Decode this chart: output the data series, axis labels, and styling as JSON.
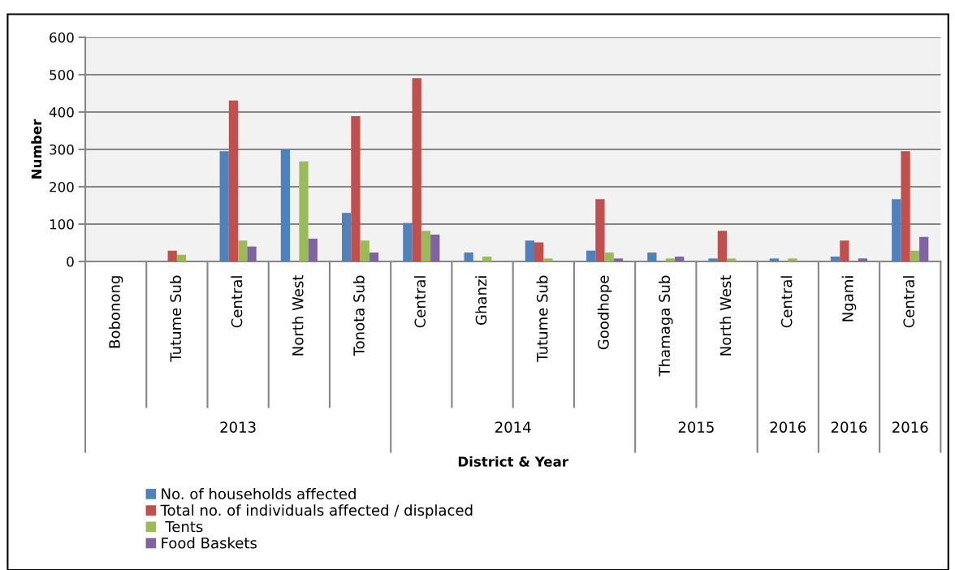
{
  "chart_data": {
    "type": "bar",
    "ylabel": "Number",
    "categories": [
      "Bobonong",
      "Tutume Sub",
      "Central",
      "North West",
      "Tonota Sub",
      "Central",
      "Ghanzi",
      "Tutume Sub",
      "Goodhope",
      "Thamaga Sub",
      "North West",
      "Central",
      "Ngami",
      "Central"
    ],
    "annotations": [
      "2013",
      "2014",
      "2015",
      "2016",
      "2016",
      "2016",
      "District & Year"
    ],
    "series": [
      {
        "name": "No. of households affected",
        "color": "#4f81bd",
        "values": [
          0,
          0,
          295,
          300,
          130,
          103,
          24,
          56,
          29,
          24,
          8,
          8,
          13,
          167
        ]
      },
      {
        "name": "Total no. of individuals affected / displaced",
        "color": "#c0504d",
        "values": [
          0,
          29,
          431,
          0,
          389,
          491,
          0,
          51,
          167,
          0,
          82,
          0,
          56,
          295
        ]
      },
      {
        "name": " Tents",
        "color": "#9bbb59",
        "values": [
          0,
          18,
          56,
          268,
          56,
          82,
          13,
          8,
          24,
          8,
          8,
          8,
          0,
          29
        ]
      },
      {
        "name": "Food Baskets",
        "color": "#8064a2",
        "values": [
          0,
          null,
          40,
          61,
          24,
          72,
          0,
          0,
          8,
          13,
          0,
          0,
          8,
          66
        ]
      }
    ],
    "ylim": [
      0,
      600
    ],
    "yticks": [
      0,
      100,
      200,
      300,
      400,
      500,
      600
    ],
    "grid": "y",
    "legend": "bottom"
  }
}
